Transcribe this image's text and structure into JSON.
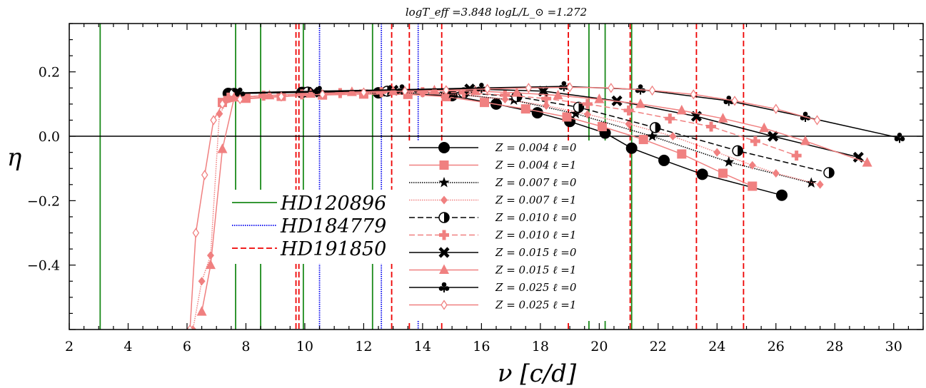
{
  "chart_data": {
    "type": "line",
    "title": "logT_eff =3.848 logL/L_⊙ =1.272",
    "xlabel": "ν  [c/d]",
    "ylabel": "η",
    "xlim": [
      2,
      31
    ],
    "ylim": [
      -0.6,
      0.35
    ],
    "xticks": [
      2,
      4,
      6,
      8,
      10,
      12,
      14,
      16,
      18,
      20,
      22,
      24,
      26,
      28,
      30
    ],
    "yticks": [
      -0.4,
      -0.2,
      0.0,
      0.2
    ],
    "ytick_labels": [
      "−0.4",
      "−0.2",
      "0.0",
      "0.2"
    ],
    "zero_line": 0,
    "observed": [
      {
        "name": "HD120896",
        "color": "#1a8a1a",
        "dash": "solid",
        "x": [
          3.05,
          7.65,
          8.5,
          9.95,
          12.3,
          19.65,
          20.2,
          21.1
        ]
      },
      {
        "name": "HD184779",
        "color": "#0000ee",
        "dash": "dotted",
        "x": [
          10.5,
          12.6,
          13.85
        ]
      },
      {
        "name": "HD191850",
        "color": "#ee0000",
        "dash": "dashed",
        "x": [
          9.7,
          9.8,
          12.95,
          13.55,
          14.65,
          18.95,
          21.05,
          23.3,
          24.9
        ]
      }
    ],
    "series": [
      {
        "name": "Z = 0.004 ℓ =0",
        "color": "#000000",
        "marker": "circle",
        "dash": "solid",
        "x": [
          7.4,
          9.9,
          12.5,
          15.0,
          16.5,
          17.9,
          19.0,
          20.2,
          21.1,
          22.2,
          23.5,
          26.2
        ],
        "y": [
          0.133,
          0.136,
          0.135,
          0.126,
          0.1,
          0.073,
          0.046,
          0.01,
          -0.037,
          -0.075,
          -0.118,
          -0.183
        ]
      },
      {
        "name": "Z = 0.004 ℓ =1",
        "color": "#f08080",
        "marker": "square",
        "dash": "solid",
        "x": [
          7.2,
          8.0,
          9.2,
          10.6,
          12.0,
          13.5,
          14.8,
          16.1,
          17.5,
          18.9,
          20.1,
          21.5,
          22.8,
          24.2,
          25.2
        ],
        "y": [
          0.105,
          0.118,
          0.124,
          0.128,
          0.131,
          0.13,
          0.123,
          0.105,
          0.085,
          0.06,
          0.03,
          -0.01,
          -0.055,
          -0.115,
          -0.155
        ]
      },
      {
        "name": "Z = 0.007 ℓ =0",
        "color": "#000000",
        "marker": "star",
        "dash": "dotted",
        "x": [
          7.5,
          10.0,
          12.6,
          15.0,
          17.1,
          19.2,
          21.8,
          24.4,
          27.2
        ],
        "y": [
          0.133,
          0.137,
          0.137,
          0.132,
          0.112,
          0.07,
          0.0,
          -0.08,
          -0.145
        ]
      },
      {
        "name": "Z = 0.007 ℓ =1",
        "color": "#f08080",
        "marker": "diamond",
        "dash": "dotted",
        "x": [
          6.2,
          6.5,
          6.8,
          7.1,
          7.5,
          8.6,
          9.9,
          11.2,
          12.6,
          14.0,
          15.4,
          16.8,
          18.2,
          19.6,
          21.0,
          22.5,
          24.0,
          25.2,
          26.0,
          27.5
        ],
        "y": [
          -0.6,
          -0.45,
          -0.37,
          0.07,
          0.122,
          0.126,
          0.13,
          0.134,
          0.135,
          0.133,
          0.128,
          0.115,
          0.095,
          0.068,
          0.038,
          0.0,
          -0.05,
          -0.09,
          -0.115,
          -0.15
        ]
      },
      {
        "name": "Z = 0.010 ℓ =0",
        "color": "#000000",
        "marker": "halfcircle",
        "dash": "dashed",
        "x": [
          7.6,
          10.1,
          12.8,
          15.4,
          17.2,
          19.3,
          21.9,
          24.7,
          27.8
        ],
        "y": [
          0.133,
          0.137,
          0.14,
          0.135,
          0.123,
          0.09,
          0.027,
          -0.045,
          -0.113
        ]
      },
      {
        "name": "Z = 0.010 ℓ =1",
        "color": "#f08080",
        "marker": "plus",
        "dash": "dashed",
        "x": [
          7.4,
          8.6,
          9.9,
          11.2,
          12.6,
          14.0,
          15.4,
          16.8,
          18.2,
          19.6,
          21.0,
          22.4,
          23.8,
          25.3,
          26.7
        ],
        "y": [
          0.12,
          0.126,
          0.13,
          0.134,
          0.137,
          0.137,
          0.135,
          0.128,
          0.117,
          0.1,
          0.08,
          0.055,
          0.03,
          -0.015,
          -0.06
        ]
      },
      {
        "name": "Z = 0.015 ℓ =0",
        "color": "#000000",
        "marker": "x",
        "dash": "solid",
        "x": [
          7.7,
          10.3,
          13.0,
          15.6,
          18.1,
          20.6,
          23.3,
          25.9,
          28.8
        ],
        "y": [
          0.133,
          0.137,
          0.143,
          0.147,
          0.14,
          0.11,
          0.062,
          0.0,
          -0.065
        ]
      },
      {
        "name": "Z = 0.015 ℓ =1",
        "color": "#f08080",
        "marker": "triangle",
        "dash": "solid",
        "x": [
          6.5,
          6.8,
          7.2,
          7.6,
          8.8,
          10.2,
          11.6,
          13.0,
          14.4,
          15.8,
          17.2,
          18.6,
          20.0,
          21.4,
          22.8,
          24.2,
          25.6,
          27.0,
          29.1
        ],
        "y": [
          -0.545,
          -0.4,
          -0.04,
          0.12,
          0.127,
          0.132,
          0.137,
          0.14,
          0.142,
          0.14,
          0.135,
          0.127,
          0.115,
          0.1,
          0.08,
          0.055,
          0.025,
          -0.015,
          -0.082
        ]
      },
      {
        "name": "Z = 0.025 ℓ =0",
        "color": "#000000",
        "marker": "club",
        "dash": "solid",
        "x": [
          7.8,
          10.5,
          13.3,
          16.0,
          18.8,
          21.4,
          24.4,
          27.0,
          30.2
        ],
        "y": [
          0.135,
          0.14,
          0.145,
          0.15,
          0.155,
          0.145,
          0.11,
          0.06,
          -0.005
        ]
      },
      {
        "name": "Z = 0.025 ℓ =1",
        "color": "#f08080",
        "marker": "thindiamond",
        "dash": "solid",
        "x": [
          6.1,
          6.3,
          6.6,
          6.9,
          7.2,
          7.8,
          9.2,
          10.6,
          12.0,
          13.4,
          14.8,
          16.2,
          17.6,
          19.0,
          20.4,
          21.8,
          23.2,
          24.6,
          26.0,
          27.4
        ],
        "y": [
          -0.6,
          -0.3,
          -0.12,
          0.05,
          0.1,
          0.115,
          0.123,
          0.13,
          0.136,
          0.14,
          0.143,
          0.147,
          0.15,
          0.152,
          0.15,
          0.142,
          0.13,
          0.11,
          0.085,
          0.05
        ]
      }
    ]
  }
}
